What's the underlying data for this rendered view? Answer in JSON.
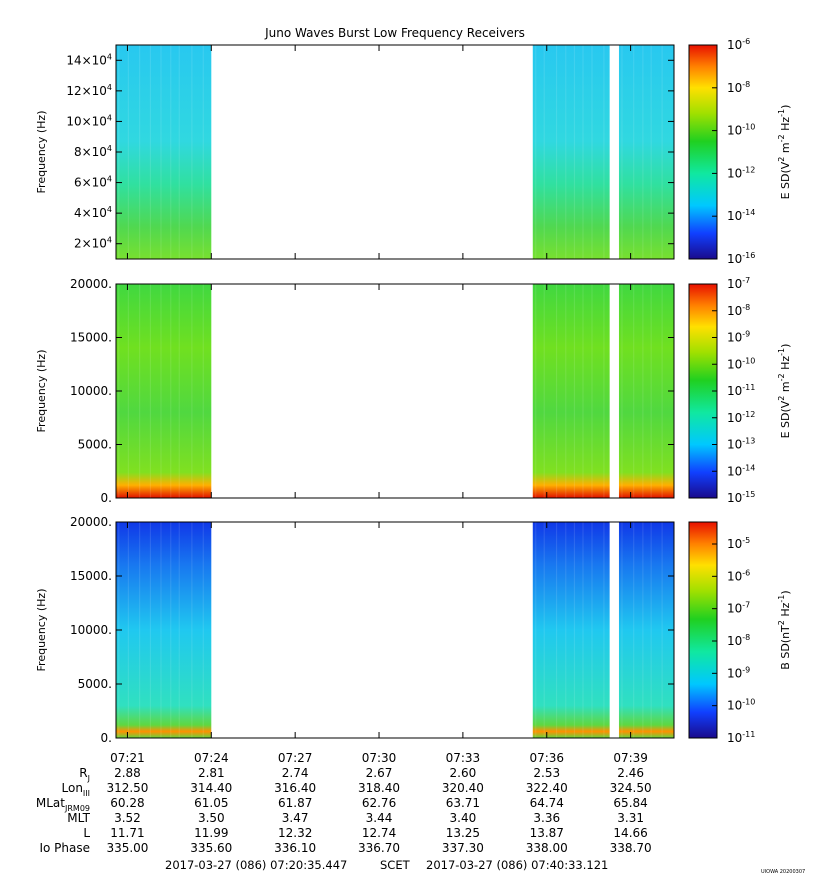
{
  "title": "Juno Waves Burst Low Frequency Receivers",
  "chart_data": [
    {
      "type": "heatmap",
      "ylabel": "Frequency (Hz)",
      "yticks": [
        "2×10^4",
        "4×10^4",
        "6×10^4",
        "8×10^4",
        "10×10^4",
        "12×10^4",
        "14×10^4"
      ],
      "ylim": [
        10000,
        150000
      ],
      "colorbar_label": "E SD(V^2 m^-2 Hz^-1)",
      "colorbar_ticks": [
        "10^-6",
        "10^-8",
        "10^-10",
        "10^-12",
        "10^-14",
        "10^-16"
      ]
    },
    {
      "type": "heatmap",
      "ylabel": "Frequency (Hz)",
      "yticks": [
        "0.",
        "5000.",
        "10000.",
        "15000.",
        "20000."
      ],
      "ylim": [
        0,
        20000
      ],
      "colorbar_label": "E SD(V^2 m^-2 Hz^-1)",
      "colorbar_ticks": [
        "10^-7",
        "10^-8",
        "10^-9",
        "10^-10",
        "10^-11",
        "10^-12",
        "10^-13",
        "10^-14",
        "10^-15"
      ]
    },
    {
      "type": "heatmap",
      "ylabel": "Frequency (Hz)",
      "yticks": [
        "0.",
        "5000.",
        "10000.",
        "15000.",
        "20000."
      ],
      "ylim": [
        0,
        20000
      ],
      "colorbar_label": "B SD(nT^2 Hz^-1)",
      "colorbar_ticks": [
        "10^-5",
        "10^-6",
        "10^-7",
        "10^-8",
        "10^-9",
        "10^-10",
        "10^-11"
      ]
    }
  ],
  "time_axis": {
    "ticks": [
      "07:21",
      "07:24",
      "07:27",
      "07:30",
      "07:33",
      "07:36",
      "07:39"
    ],
    "data_segments": [
      {
        "start": "07:20:35",
        "end": "07:24:00"
      },
      {
        "start": "07:35:30",
        "end": "07:38:15"
      },
      {
        "start": "07:38:35",
        "end": "07:40:33"
      }
    ]
  },
  "ephemeris": {
    "labels": [
      "R_J",
      "Lon_III",
      "MLat_JRM09",
      "MLT",
      "L",
      "Io Phase"
    ],
    "rows": [
      [
        "2.88",
        "2.81",
        "2.74",
        "2.67",
        "2.60",
        "2.53",
        "2.46"
      ],
      [
        "312.50",
        "314.40",
        "316.40",
        "318.40",
        "320.40",
        "322.40",
        "324.50"
      ],
      [
        "60.28",
        "61.05",
        "61.87",
        "62.76",
        "63.71",
        "64.74",
        "65.84"
      ],
      [
        "3.52",
        "3.50",
        "3.47",
        "3.44",
        "3.40",
        "3.36",
        "3.31"
      ],
      [
        "11.71",
        "11.99",
        "12.32",
        "12.74",
        "13.25",
        "13.87",
        "14.66"
      ],
      [
        "335.00",
        "335.60",
        "336.10",
        "336.70",
        "337.30",
        "338.00",
        "338.70"
      ]
    ]
  },
  "footer": {
    "start": "2017-03-27 (086) 07:20:35.447",
    "mid": "SCET",
    "end": "2017-03-27 (086) 07:40:33.121",
    "stamp": "UIOWA 20200307"
  }
}
